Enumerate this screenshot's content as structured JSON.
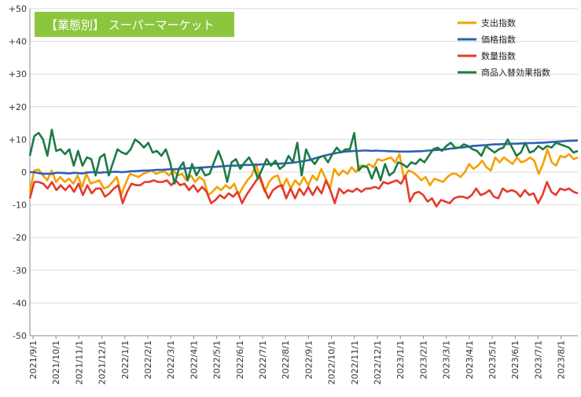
{
  "chart_data": {
    "type": "line",
    "title": "【業態別】 スーパーマーケット",
    "title_bg_color": "#8cc63f",
    "ylim": [
      -50,
      50
    ],
    "y_ticks": [
      {
        "value": 50,
        "label": "+50"
      },
      {
        "value": 40,
        "label": "+40"
      },
      {
        "value": 30,
        "label": "+30"
      },
      {
        "value": 20,
        "label": "+20"
      },
      {
        "value": 10,
        "label": "+10"
      },
      {
        "value": 0,
        "label": "0"
      },
      {
        "value": -10,
        "label": "-10"
      },
      {
        "value": -20,
        "label": "-20"
      },
      {
        "value": -30,
        "label": "-30"
      },
      {
        "value": -40,
        "label": "-40"
      },
      {
        "value": -50,
        "label": "-50"
      }
    ],
    "x_tick_labels": [
      "2021/9/1",
      "2021/10/1",
      "2021/11/1",
      "2021/12/1",
      "2022/1/1",
      "2022/2/1",
      "2022/3/1",
      "2022/4/1",
      "2022/5/1",
      "2022/6/1",
      "2022/7/1",
      "2022/8/1",
      "2022/9/1",
      "2022/10/1",
      "2022/11/1",
      "2022/12/1",
      "2023/1/1",
      "2023/2/1",
      "2023/3/1",
      "2023/4/1",
      "2023/5/1",
      "2023/6/1",
      "2023/7/1",
      "2023/8/1"
    ],
    "grid": "horizontal",
    "legend_position": "top-right",
    "series": [
      {
        "name": "支出指数",
        "color": "#f5a000",
        "values": [
          -6,
          0.5,
          0.8,
          -1,
          -2.5,
          0.5,
          -3,
          -1.5,
          -3,
          -2,
          -3.5,
          -1,
          -4.5,
          -0.5,
          -3.5,
          -3,
          -2.5,
          -5,
          -4.5,
          -3,
          -1.5,
          -7,
          -3.5,
          -0.5,
          -1,
          -1.5,
          -0.5,
          0,
          0.5,
          -0.5,
          0,
          0.2,
          -1,
          0.5,
          -1,
          -0.5,
          -2.5,
          -1,
          -3,
          -1.5,
          -2.5,
          -7,
          -6,
          -4.5,
          -5.5,
          -4,
          -5,
          -3.5,
          -7,
          -4.5,
          -2.5,
          -1,
          2.5,
          -2.5,
          -6,
          -3,
          -1.5,
          -1,
          -5,
          -2,
          -5,
          -2.5,
          -4,
          -1.5,
          -4,
          -1,
          -2.5,
          1,
          -2,
          -5,
          1,
          -1,
          0.5,
          -0.5,
          1.5,
          0,
          2,
          1.5,
          2.5,
          1.5,
          4,
          3.5,
          4,
          4.5,
          3,
          5.5,
          -2,
          0.5,
          0,
          -1,
          -2.5,
          -1.5,
          -4,
          -2,
          -2.5,
          -3,
          -1.5,
          -0.5,
          -0.5,
          -1.5,
          0,
          2.5,
          1,
          2,
          3.5,
          1.5,
          0.5,
          4.5,
          3,
          4.5,
          3.5,
          2.5,
          4.5,
          3,
          3.5,
          4.5,
          3.5,
          -0.5,
          2.5,
          7,
          3,
          2,
          5,
          4.5,
          5.5,
          4,
          4.5
        ]
      },
      {
        "name": "価格指数",
        "color": "#2e5fb7",
        "values": [
          0,
          0,
          -0.3,
          -0.5,
          -0.5,
          -0.5,
          -0.2,
          -0.2,
          -0.3,
          -0.4,
          -0.2,
          -0.3,
          -0.4,
          -0.1,
          0,
          0,
          -0.2,
          0,
          -0.1,
          0.1,
          0.1,
          0,
          0.1,
          0.3,
          0.3,
          0.4,
          0.5,
          0.5,
          0.6,
          0.7,
          0.7,
          0.8,
          0.9,
          0.9,
          1,
          1.1,
          1.2,
          1.3,
          1.3,
          1.4,
          1.5,
          1.6,
          1.6,
          1.7,
          1.8,
          1.9,
          2,
          2,
          2.1,
          2.2,
          2.2,
          2.3,
          2.3,
          2.4,
          2.4,
          2.5,
          2.6,
          2.6,
          2.7,
          2.8,
          2.9,
          3.1,
          3.3,
          3.5,
          3.8,
          4.2,
          4.6,
          5,
          5.3,
          5.6,
          5.9,
          6.1,
          6.3,
          6.4,
          6.5,
          6.5,
          6.6,
          6.6,
          6.5,
          6.6,
          6.5,
          6.5,
          6.4,
          6.4,
          6.3,
          6.3,
          6.3,
          6.3,
          6.4,
          6.4,
          6.5,
          6.6,
          6.7,
          6.8,
          6.9,
          7,
          7.2,
          7.3,
          7.5,
          7.6,
          7.8,
          8,
          8.1,
          8.2,
          8.3,
          8.4,
          8.5,
          8.5,
          8.6,
          8.6,
          8.7,
          8.7,
          8.8,
          8.8,
          8.9,
          8.9,
          9,
          9,
          9.1,
          9.2,
          9.3,
          9.4,
          9.5,
          9.6,
          9.6,
          9.7
        ]
      },
      {
        "name": "数量指数",
        "color": "#e53a2b",
        "values": [
          -8,
          -3,
          -3,
          -3.5,
          -5,
          -3,
          -5.5,
          -4,
          -5.5,
          -4,
          -6,
          -3.5,
          -7,
          -4,
          -6.5,
          -5,
          -5,
          -7.5,
          -6.5,
          -5,
          -4,
          -9.5,
          -6,
          -3.5,
          -4,
          -4,
          -3,
          -3,
          -2.5,
          -3,
          -3,
          -2.5,
          -4,
          -2.5,
          -4,
          -3.5,
          -5.5,
          -4,
          -6,
          -4.5,
          -6,
          -9.5,
          -8.5,
          -7,
          -8,
          -6.5,
          -7.5,
          -6,
          -9.5,
          -7,
          -5,
          -3,
          -1,
          -5,
          -8,
          -5.5,
          -4.5,
          -4,
          -8,
          -5,
          -8,
          -5,
          -7,
          -4.5,
          -7,
          -4.5,
          -6.5,
          -2.5,
          -5.5,
          -9.5,
          -5,
          -6.5,
          -5.5,
          -6,
          -5,
          -6,
          -5,
          -5,
          -4.5,
          -5,
          -3,
          -3.5,
          -3,
          -2.5,
          -3.5,
          -1,
          -9,
          -6.5,
          -6,
          -7,
          -9,
          -8,
          -10.5,
          -8.5,
          -9,
          -9.5,
          -8,
          -7.5,
          -7.5,
          -8,
          -7,
          -5,
          -7,
          -6.5,
          -5.5,
          -7.5,
          -8,
          -5,
          -6,
          -5.5,
          -6,
          -7.5,
          -5.5,
          -7,
          -6.5,
          -9.5,
          -7,
          -3,
          -6,
          -7,
          -5,
          -5.5,
          -5,
          -6,
          -6.5
        ]
      },
      {
        "name": "商品入替効果指数",
        "color": "#1d7a46",
        "values": [
          5,
          11,
          12,
          10,
          5,
          13,
          6.5,
          7,
          5.5,
          7,
          2,
          6.5,
          2,
          4.5,
          4,
          -1,
          4.5,
          5.5,
          -1,
          3,
          7,
          6,
          5.5,
          7,
          10,
          9,
          7.5,
          9,
          6,
          6.5,
          5,
          7,
          3,
          -3.5,
          1,
          3,
          -2.5,
          2.5,
          -1,
          1.5,
          -1,
          -0.5,
          3,
          6.5,
          3,
          -3,
          3,
          4,
          1,
          3,
          4.5,
          2,
          -2,
          1,
          4,
          2,
          3.5,
          1,
          2,
          5,
          3,
          9,
          -1,
          7,
          4,
          2.5,
          4.5,
          5,
          3,
          5.5,
          7.5,
          6,
          7,
          7,
          12,
          0.5,
          2,
          1.5,
          -2,
          1.5,
          -2.5,
          2.5,
          -1,
          0,
          3,
          2.5,
          1.5,
          3,
          2.5,
          4,
          3,
          5,
          7,
          7.5,
          6.5,
          8,
          9,
          7.5,
          7.5,
          8.5,
          8,
          7,
          6.5,
          5,
          8,
          7,
          6,
          7,
          7.5,
          10,
          7.5,
          5,
          6,
          9,
          6,
          6.5,
          8,
          7,
          8,
          7.5,
          9,
          8.5,
          8,
          7.5,
          6,
          6.5
        ]
      }
    ]
  }
}
